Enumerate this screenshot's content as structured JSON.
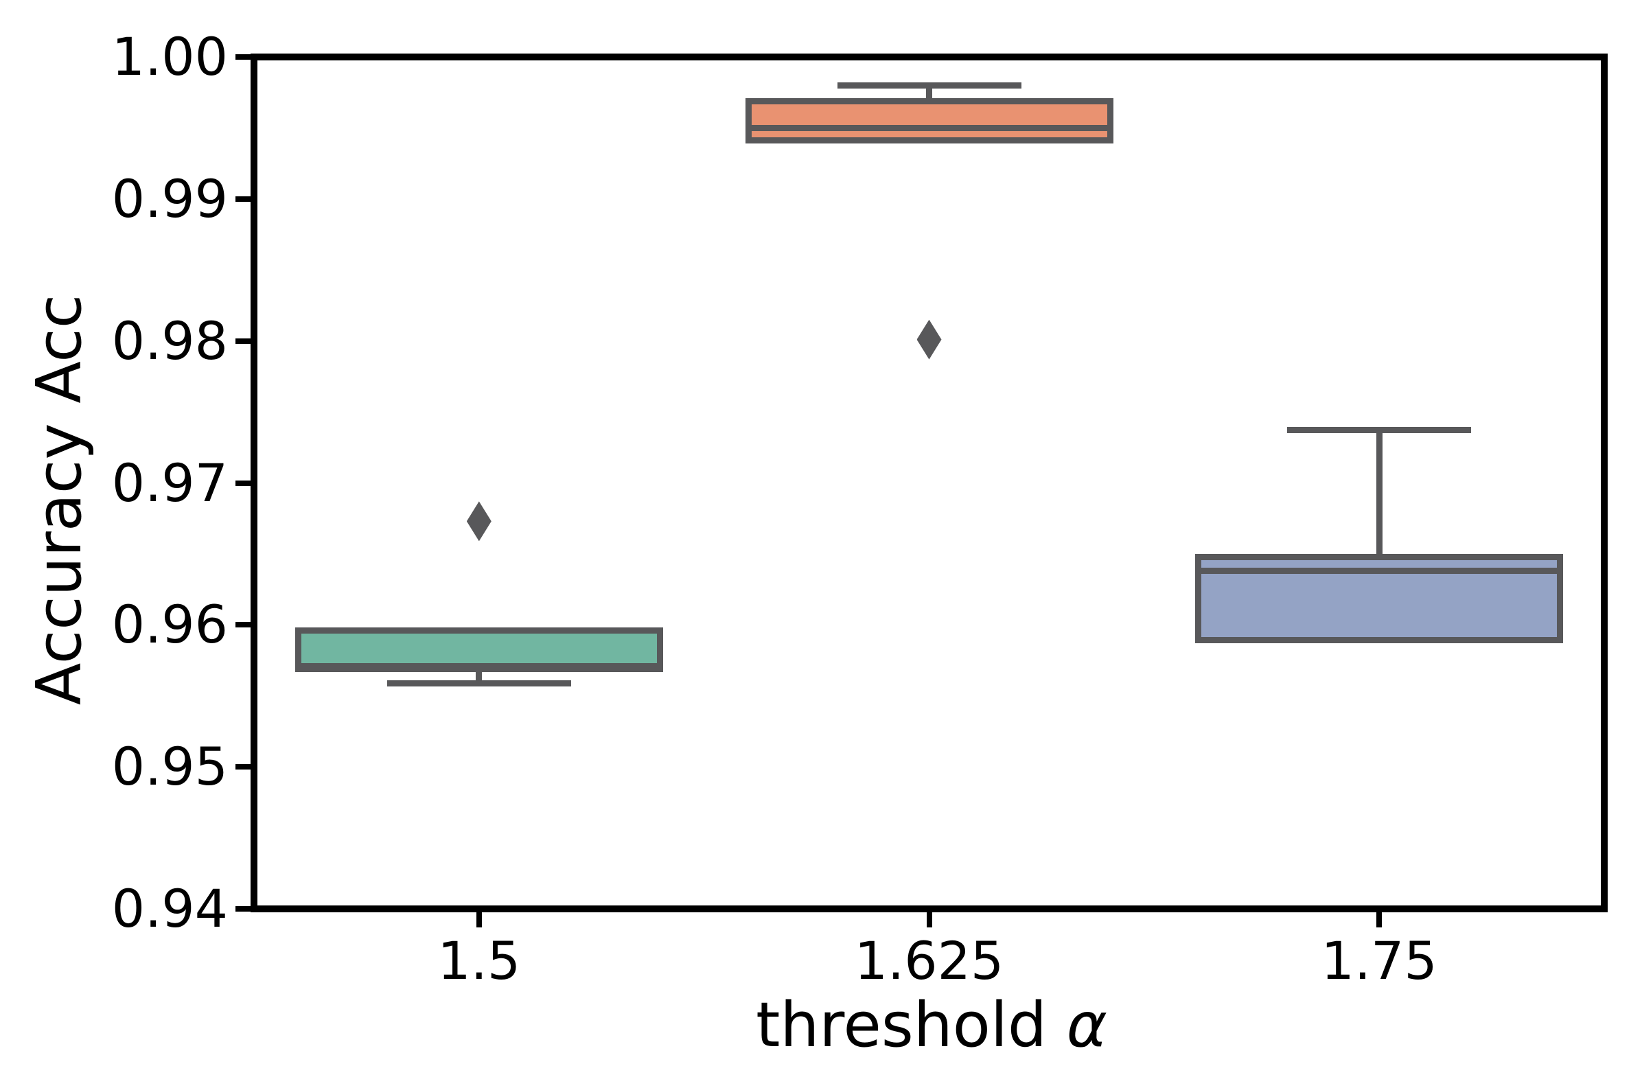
{
  "chart_data": {
    "type": "box",
    "title": "",
    "ylabel": "Accuracy Acc",
    "xlabel_text": "threshold ",
    "xlabel_symbol": "α",
    "ylim": [
      0.94,
      1.0
    ],
    "grid": false,
    "legend": null,
    "y_ticks": [
      {
        "label": "1.00",
        "value": 1.0
      },
      {
        "label": "0.99",
        "value": 0.99
      },
      {
        "label": "0.98",
        "value": 0.98
      },
      {
        "label": "0.97",
        "value": 0.97
      },
      {
        "label": "0.96",
        "value": 0.96
      },
      {
        "label": "0.95",
        "value": 0.95
      },
      {
        "label": "0.94",
        "value": 0.94
      }
    ],
    "categories": [
      "1.5",
      "1.625",
      "1.75"
    ],
    "boxes": [
      {
        "category": "1.5",
        "q1": 0.9567,
        "median": 0.9571,
        "q3": 0.9598,
        "whisker_low": 0.9559,
        "whisker_high": null,
        "outliers": [
          0.9673
        ]
      },
      {
        "category": "1.625",
        "q1": 0.9939,
        "median": 0.995,
        "q3": 0.9971,
        "whisker_low": null,
        "whisker_high": 0.998,
        "outliers": [
          0.9801
        ]
      },
      {
        "category": "1.75",
        "q1": 0.9587,
        "median": 0.9638,
        "q3": 0.965,
        "whisker_low": null,
        "whisker_high": 0.9737,
        "outliers": []
      }
    ],
    "colors": {
      "box_fills": [
        "#71b6a1",
        "#e99271",
        "#94a3c5"
      ],
      "box_line": "#58585a",
      "flier": "#58585a",
      "axis": "#000000",
      "background": "#ffffff"
    }
  }
}
